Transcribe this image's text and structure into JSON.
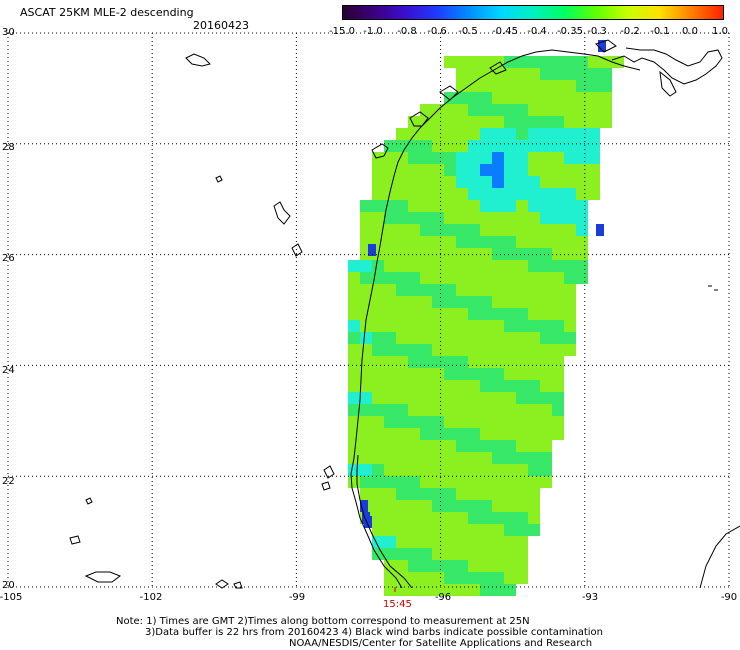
{
  "header": {
    "title": "ASCAT 25KM MLE-2 descending",
    "date": "20160423"
  },
  "color_scale": {
    "labels": [
      "-15.0",
      "-1.0",
      "-0.8",
      "-0.6",
      "-0.5",
      "-0.45",
      "-0.4",
      "-0.35",
      "-0.3",
      "-0.2",
      "-0.1",
      "0.0",
      "1.0"
    ],
    "colors": [
      "#2a0030",
      "#3c0080",
      "#3a10d0",
      "#1e3cff",
      "#0090ff",
      "#00d8ff",
      "#00f0c0",
      "#00ff60",
      "#60ff00",
      "#c8ff00",
      "#ffe000",
      "#ff8000",
      "#ff2000"
    ]
  },
  "map": {
    "y_axis_labels": [
      "30",
      "28",
      "26",
      "24",
      "22",
      "20"
    ],
    "x_axis_labels": [
      "-105",
      "-102",
      "-99",
      "-96",
      "-93",
      "-90"
    ],
    "lat_range": [
      20,
      30
    ],
    "lon_range": [
      -105,
      -90
    ],
    "swath_time": "15:45"
  },
  "notes": {
    "line1": "Note: 1) Times are GMT 2)Times along bottom correspond to measurement at 25N",
    "line2": "3)Data buffer is 22 hrs from 20160423 4) Black wind barbs indicate possible contamination",
    "line3": "NOAA/NESDIS/Center for Satellite Applications and Research"
  },
  "style": {
    "swath_base": "#8cf020",
    "swath_cool": "#38e868",
    "swath_cyan": "#20f0d0",
    "swath_blue": "#0a7cff",
    "swath_dark": "#1a3cd8",
    "grid": "#000000",
    "coast": "#000000",
    "time_color": "#cc0000"
  }
}
